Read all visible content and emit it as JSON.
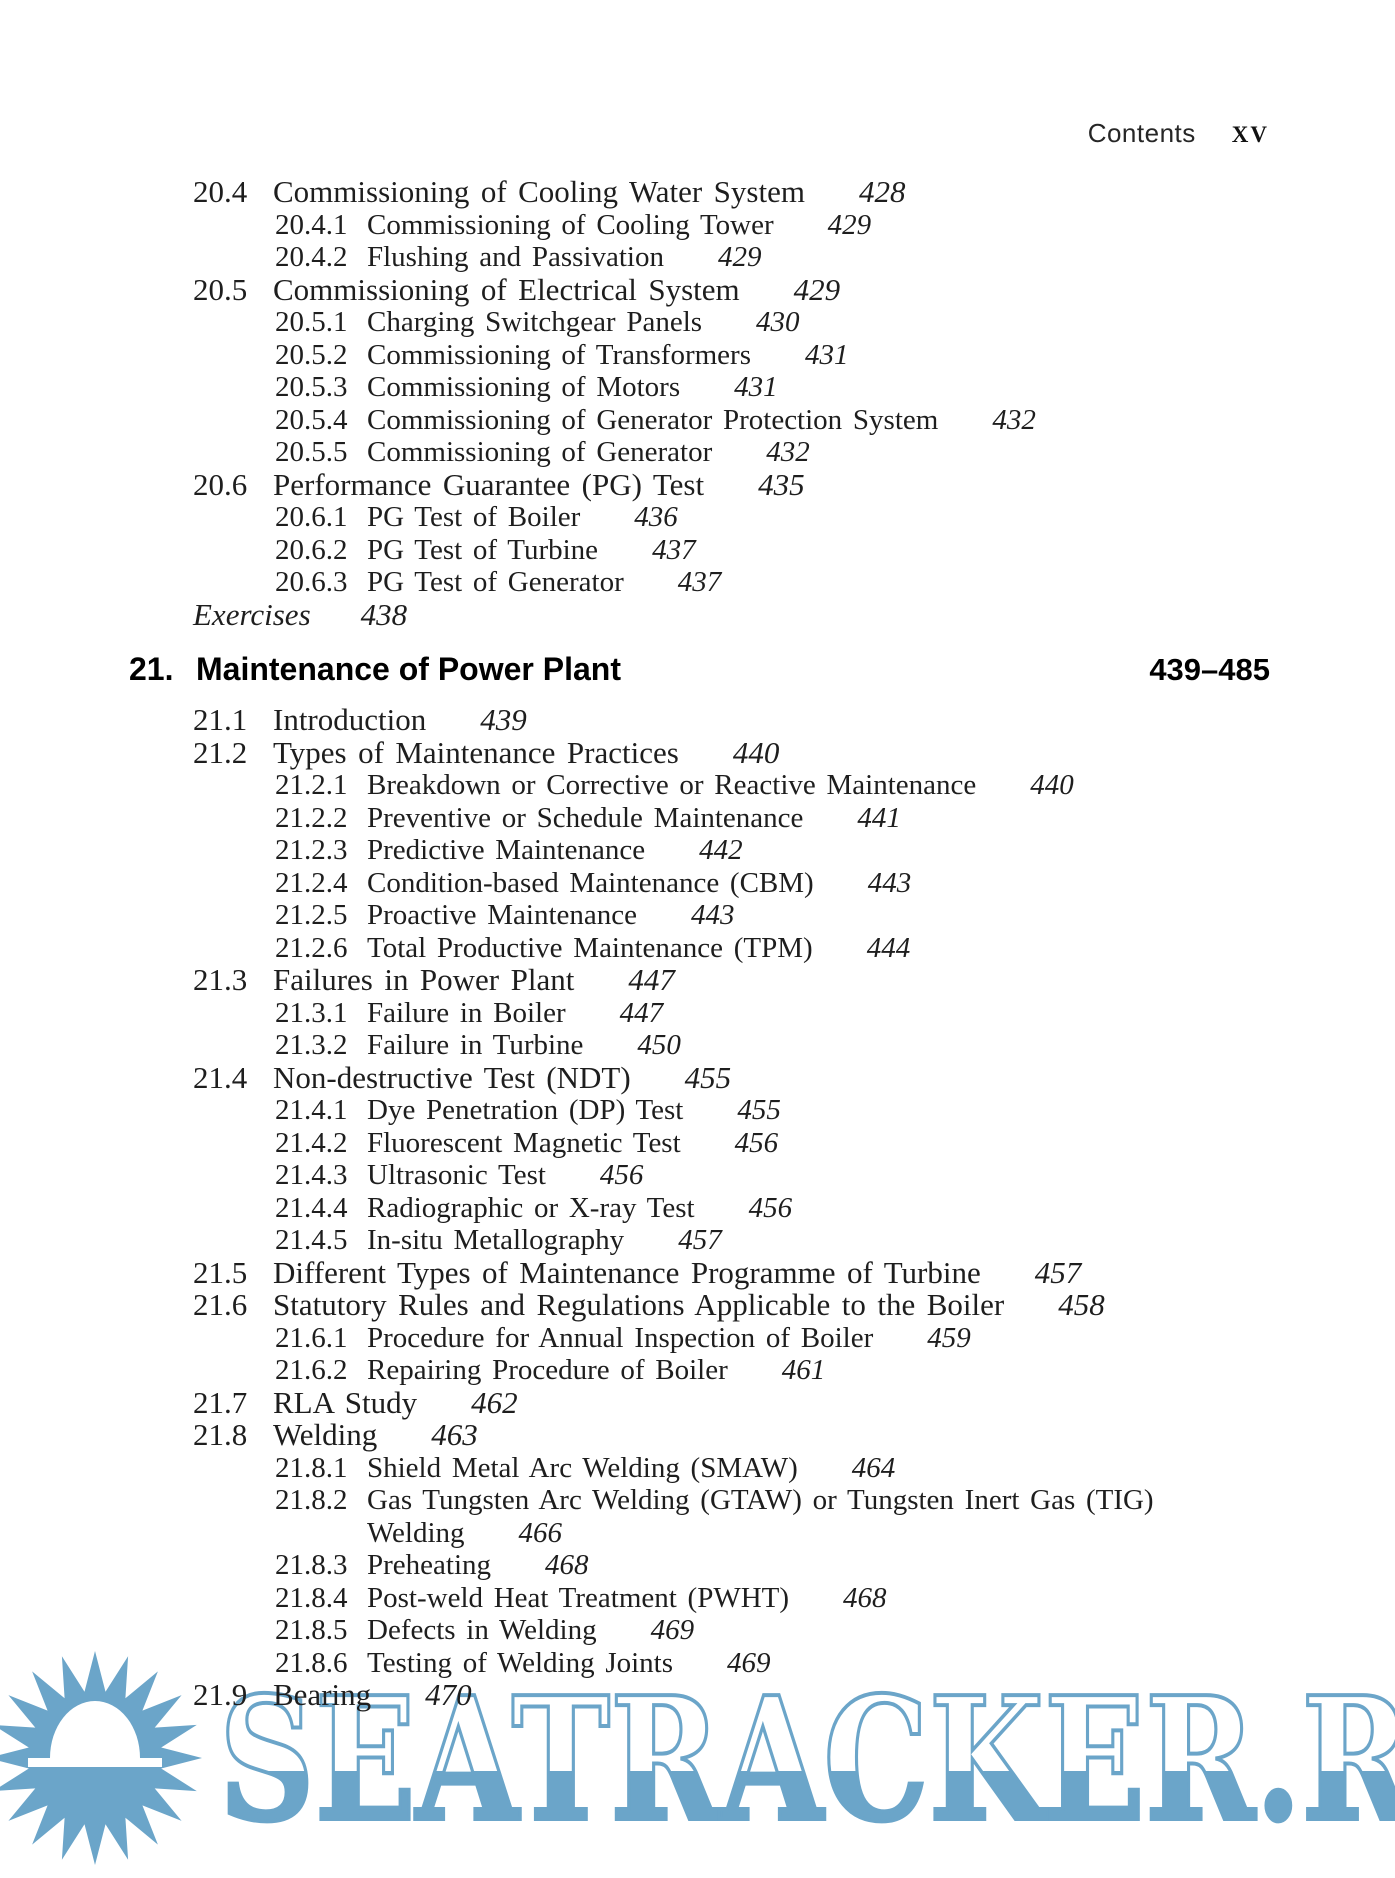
{
  "page_header": {
    "section_label": "Contents",
    "page_number": "XV"
  },
  "toc_continued": {
    "entries": [
      {
        "level": 1,
        "num": "20.4",
        "title": "Commissioning of Cooling Water System",
        "page": "428"
      },
      {
        "level": 2,
        "num": "20.4.1",
        "title": "Commissioning of Cooling Tower",
        "page": "429"
      },
      {
        "level": 2,
        "num": "20.4.2",
        "title": "Flushing and Passivation",
        "page": "429"
      },
      {
        "level": 1,
        "num": "20.5",
        "title": "Commissioning of Electrical System",
        "page": "429"
      },
      {
        "level": 2,
        "num": "20.5.1",
        "title": "Charging Switchgear Panels",
        "page": "430"
      },
      {
        "level": 2,
        "num": "20.5.2",
        "title": "Commissioning of Transformers",
        "page": "431"
      },
      {
        "level": 2,
        "num": "20.5.3",
        "title": "Commissioning of Motors",
        "page": "431"
      },
      {
        "level": 2,
        "num": "20.5.4",
        "title": "Commissioning of Generator Protection System",
        "page": "432"
      },
      {
        "level": 2,
        "num": "20.5.5",
        "title": "Commissioning of Generator",
        "page": "432"
      },
      {
        "level": 1,
        "num": "20.6",
        "title": "Performance Guarantee (PG) Test",
        "page": "435"
      },
      {
        "level": 2,
        "num": "20.6.1",
        "title": "PG Test of Boiler",
        "page": "436"
      },
      {
        "level": 2,
        "num": "20.6.2",
        "title": "PG Test of Turbine",
        "page": "437"
      },
      {
        "level": 2,
        "num": "20.6.3",
        "title": "PG Test of Generator",
        "page": "437"
      }
    ],
    "exercises": {
      "label": "Exercises",
      "page": "438"
    }
  },
  "chapter": {
    "number": "21.",
    "title": "Maintenance of Power Plant",
    "page_range": "439–485",
    "entries": [
      {
        "level": 1,
        "num": "21.1",
        "title": "Introduction",
        "page": "439"
      },
      {
        "level": 1,
        "num": "21.2",
        "title": "Types of Maintenance Practices",
        "page": "440"
      },
      {
        "level": 2,
        "num": "21.2.1",
        "title": "Breakdown or Corrective or Reactive Maintenance",
        "page": "440"
      },
      {
        "level": 2,
        "num": "21.2.2",
        "title": "Preventive or Schedule Maintenance",
        "page": "441"
      },
      {
        "level": 2,
        "num": "21.2.3",
        "title": "Predictive Maintenance",
        "page": "442"
      },
      {
        "level": 2,
        "num": "21.2.4",
        "title": "Condition-based Maintenance (CBM)",
        "page": "443"
      },
      {
        "level": 2,
        "num": "21.2.5",
        "title": "Proactive Maintenance",
        "page": "443"
      },
      {
        "level": 2,
        "num": "21.2.6",
        "title": "Total Productive Maintenance (TPM)",
        "page": "444"
      },
      {
        "level": 1,
        "num": "21.3",
        "title": "Failures in Power Plant",
        "page": "447"
      },
      {
        "level": 2,
        "num": "21.3.1",
        "title": "Failure in Boiler",
        "page": "447"
      },
      {
        "level": 2,
        "num": "21.3.2",
        "title": "Failure in Turbine",
        "page": "450"
      },
      {
        "level": 1,
        "num": "21.4",
        "title": "Non-destructive Test (NDT)",
        "page": "455"
      },
      {
        "level": 2,
        "num": "21.4.1",
        "title": "Dye Penetration (DP) Test",
        "page": "455"
      },
      {
        "level": 2,
        "num": "21.4.2",
        "title": "Fluorescent Magnetic Test",
        "page": "456"
      },
      {
        "level": 2,
        "num": "21.4.3",
        "title": "Ultrasonic Test",
        "page": "456"
      },
      {
        "level": 2,
        "num": "21.4.4",
        "title": "Radiographic or X-ray Test",
        "page": "456"
      },
      {
        "level": 2,
        "num": "21.4.5",
        "title": "In-situ Metallography",
        "page": "457"
      },
      {
        "level": 1,
        "num": "21.5",
        "title": "Different Types of Maintenance Programme of Turbine",
        "page": "457"
      },
      {
        "level": 1,
        "num": "21.6",
        "title": "Statutory Rules and Regulations Applicable to the Boiler",
        "page": "458"
      },
      {
        "level": 2,
        "num": "21.6.1",
        "title": "Procedure for Annual Inspection of Boiler",
        "page": "459"
      },
      {
        "level": 2,
        "num": "21.6.2",
        "title": "Repairing Procedure of Boiler",
        "page": "461"
      },
      {
        "level": 1,
        "num": "21.7",
        "title": "RLA Study",
        "page": "462"
      },
      {
        "level": 1,
        "num": "21.8",
        "title": "Welding",
        "page": "463"
      },
      {
        "level": 2,
        "num": "21.8.1",
        "title": "Shield Metal Arc Welding (SMAW)",
        "page": "464"
      },
      {
        "level": 2,
        "num": "21.8.2",
        "title": "Gas Tungsten Arc Welding (GTAW) or Tungsten Inert Gas (TIG)",
        "title_line2": "Welding",
        "page": "466"
      },
      {
        "level": 2,
        "num": "21.8.3",
        "title": "Preheating",
        "page": "468"
      },
      {
        "level": 2,
        "num": "21.8.4",
        "title": "Post-weld Heat Treatment (PWHT)",
        "page": "468"
      },
      {
        "level": 2,
        "num": "21.8.5",
        "title": "Defects in Welding",
        "page": "469"
      },
      {
        "level": 2,
        "num": "21.8.6",
        "title": "Testing of Welding Joints",
        "page": "469"
      },
      {
        "level": 1,
        "num": "21.9",
        "title": "Bearing",
        "page": "470"
      }
    ]
  },
  "watermark": {
    "text": "SEATRACKER.RU",
    "color": "#6ba5c9",
    "icon": "sun-icon"
  }
}
